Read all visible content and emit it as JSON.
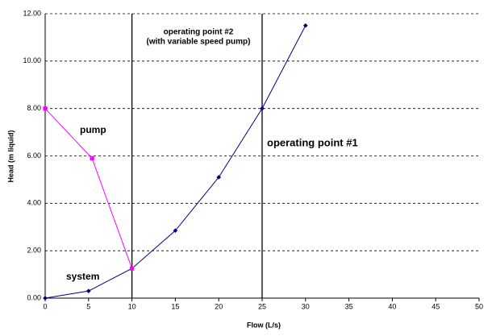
{
  "chart_data": {
    "type": "line",
    "x_label": "Flow (L/s)",
    "y_label": "Head (m liquid)",
    "xlim": [
      0,
      50
    ],
    "xticks": [
      0,
      5,
      10,
      15,
      20,
      25,
      30,
      35,
      40,
      45,
      50
    ],
    "ylim": [
      0,
      12
    ],
    "yticks": [
      {
        "value": 0,
        "label": "0.00"
      },
      {
        "value": 2,
        "label": "2.00"
      },
      {
        "value": 4,
        "label": "4.00"
      },
      {
        "value": 6,
        "label": "6.00"
      },
      {
        "value": 8,
        "label": "8.00"
      },
      {
        "value": 10,
        "label": "10.00"
      },
      {
        "value": 12,
        "label": "12.00"
      }
    ],
    "grid": true,
    "series": [
      {
        "name": "system",
        "color": "#000080",
        "x": [
          0,
          5,
          10,
          15,
          20,
          25,
          30
        ],
        "values": [
          0,
          0.3,
          1.25,
          2.85,
          5.1,
          8.0,
          11.5
        ]
      },
      {
        "name": "pump",
        "color": "#ff00ff",
        "x": [
          0,
          5.4,
          10
        ],
        "values": [
          8,
          5.9,
          1.25
        ]
      }
    ],
    "vlines": [
      10,
      25
    ],
    "annotations": [
      "operating point #2",
      "(with variable speed pump)",
      "operating point #1"
    ]
  }
}
